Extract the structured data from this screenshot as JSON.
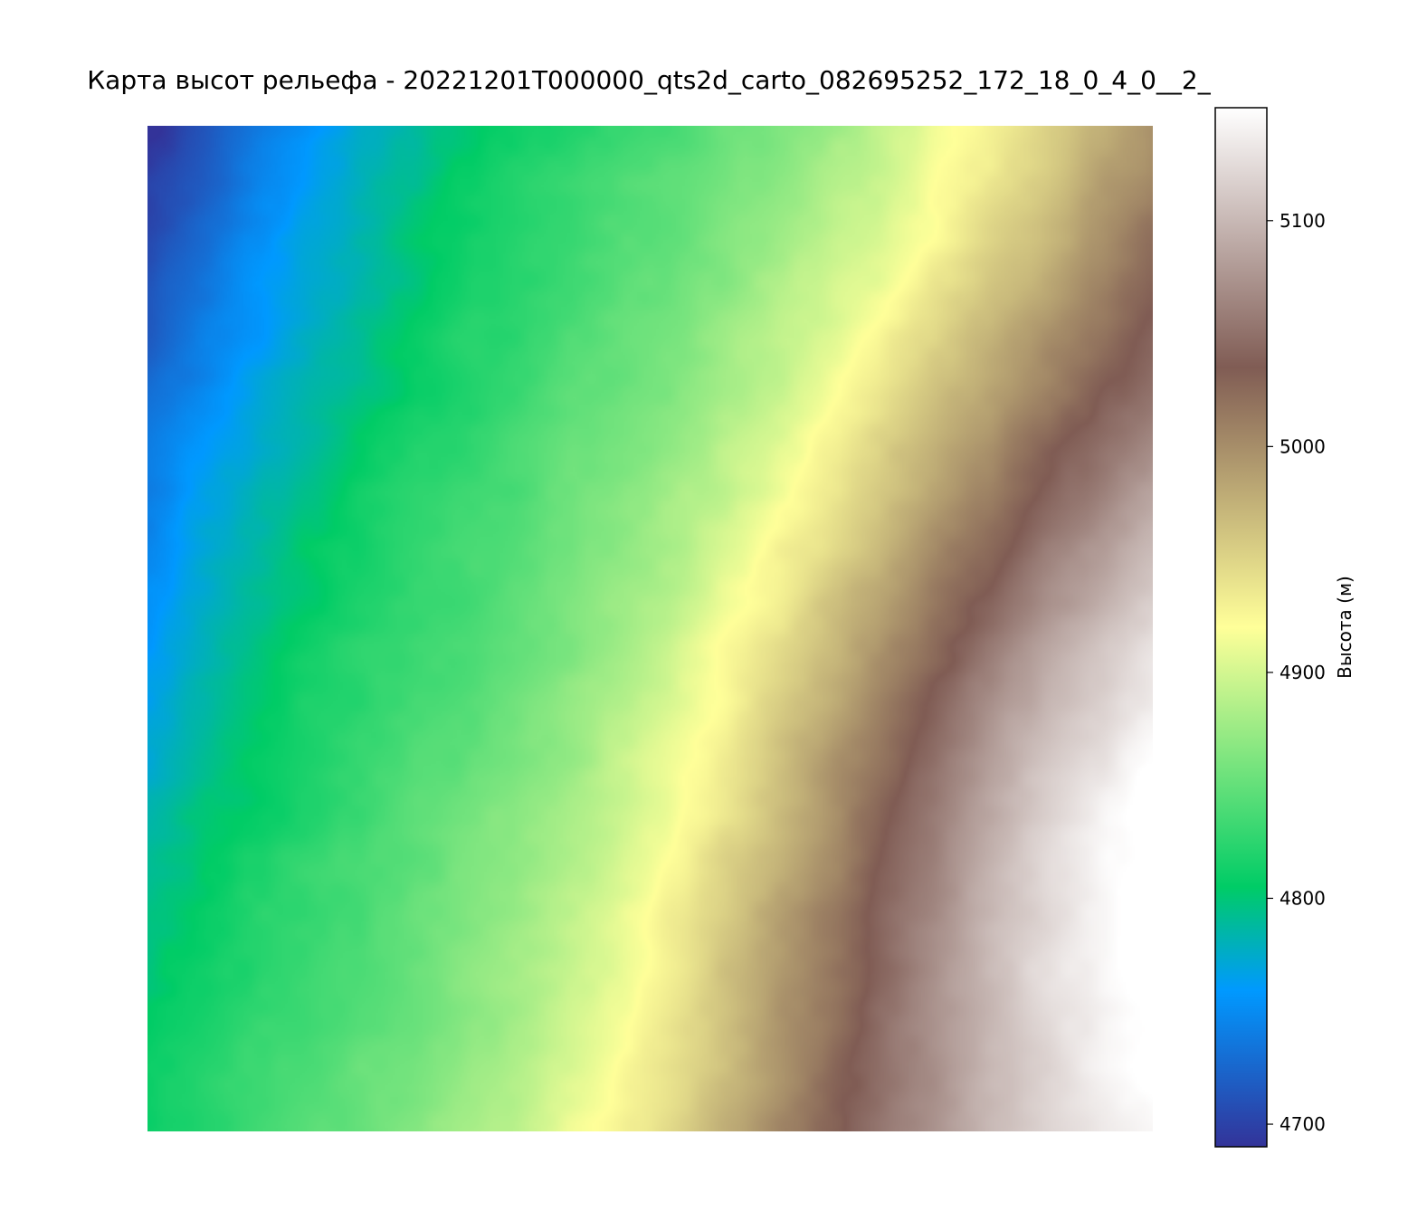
{
  "chart_data": {
    "type": "heatmap",
    "title": "Карта высот рельефа - 20221201T000000_qts2d_carto_082695252_172_18_0_4_0__2_",
    "colormap": "terrain",
    "axes_visible": false,
    "grid": false,
    "colorbar": {
      "label": "Высота (м)",
      "range": [
        4690,
        5150
      ],
      "ticks": [
        4700,
        4800,
        4900,
        5000,
        5100
      ],
      "tick_labels": [
        "4700",
        "4800",
        "4900",
        "5000",
        "5100"
      ],
      "position": "right"
    },
    "stops": [
      {
        "t": 0.0,
        "color": "#333399"
      },
      {
        "t": 0.15,
        "color": "#0099ff"
      },
      {
        "t": 0.25,
        "color": "#00cc66"
      },
      {
        "t": 0.5,
        "color": "#ffff99"
      },
      {
        "t": 0.75,
        "color": "#805c54"
      },
      {
        "t": 1.0,
        "color": "#ffffff"
      }
    ],
    "surface": {
      "corner_values": {
        "top_left": 4695,
        "top_right": 4985,
        "bottom_left": 4800,
        "bottom_right": 5090
      },
      "value_range": [
        4695,
        5145
      ]
    }
  }
}
